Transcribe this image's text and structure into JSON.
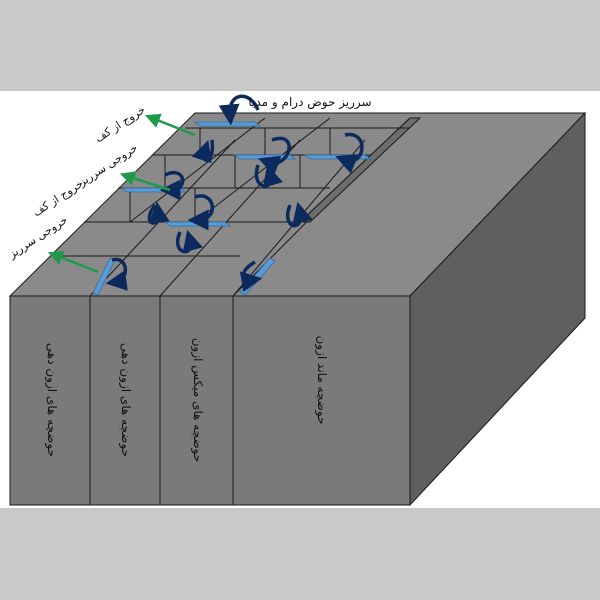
{
  "colors": {
    "background": "#c9c9c9",
    "panel": "#ffffff",
    "front_face": "#7a7a7a",
    "right_face": "#5f5f5f",
    "top_face": "#8a8a8a",
    "divider_line": "#1a1a1a",
    "weir": "#5b9bd5",
    "flow_arrow": "#0d2a5e",
    "outlet_arrow": "#1e9a4a"
  },
  "labels": {
    "top_overflow": "سرریز حوض درام و مدیا",
    "outlet_top_1": "خروج از کف",
    "outlet_overflow_1": "خروجی سرریز",
    "outlet_top_2": "خروج از کف",
    "outlet_overflow_2": "خروجی سرریز"
  },
  "compartments": [
    {
      "label": "حوضچه های ازون دهی"
    },
    {
      "label": "حوضچه های ازون دهی"
    },
    {
      "label": "حوضچه های میکس ازون"
    },
    {
      "label": "حوضچه ماند ازون"
    }
  ]
}
